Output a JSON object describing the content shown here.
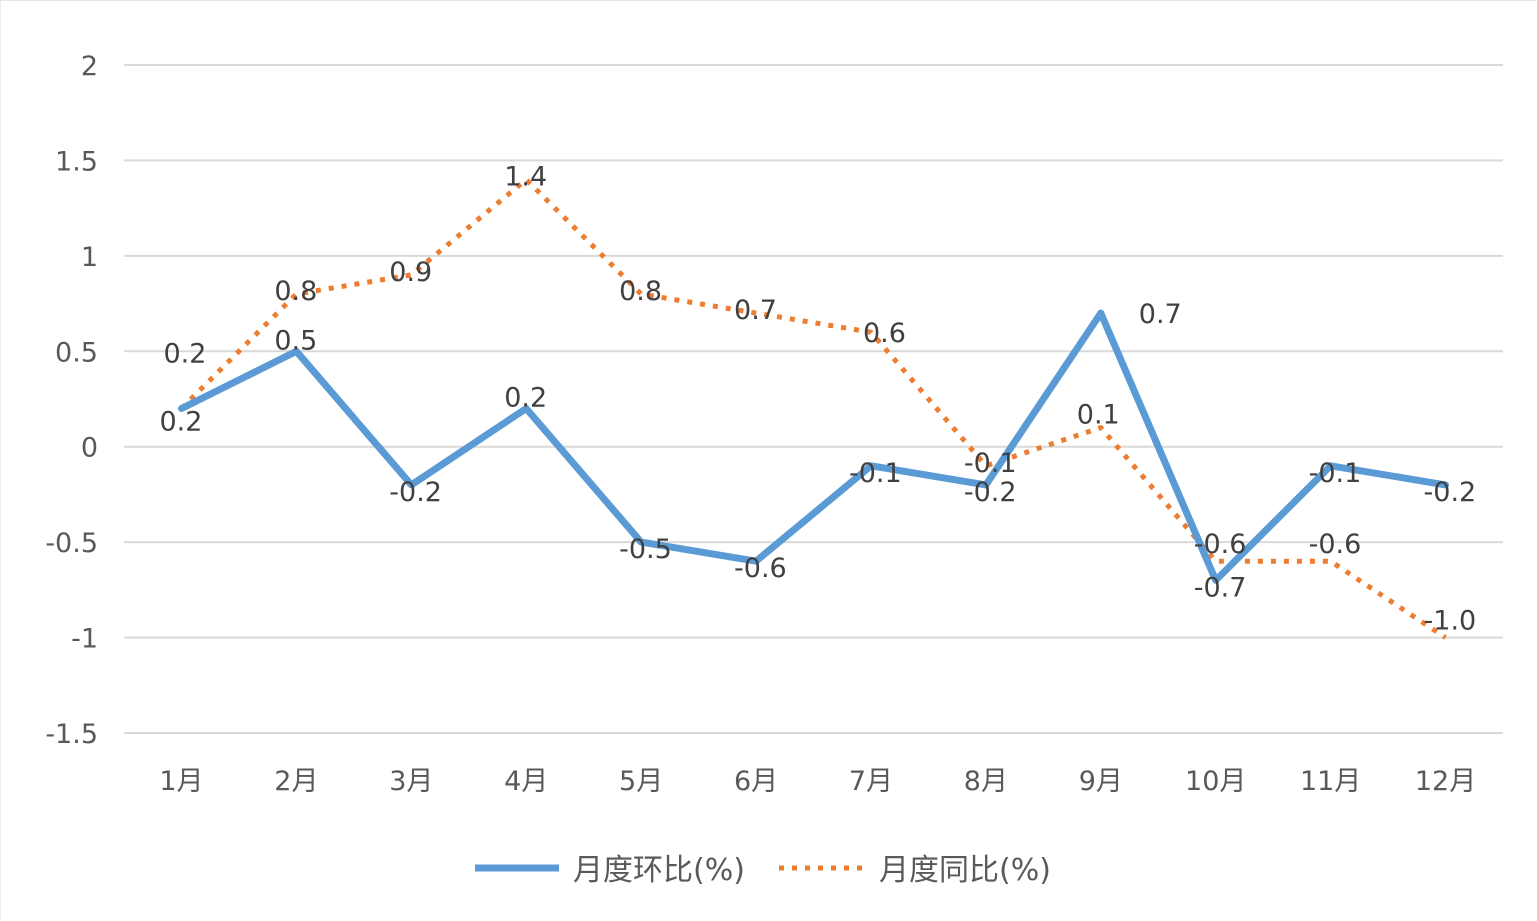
{
  "chart_data": {
    "type": "line",
    "categories": [
      "1月",
      "2月",
      "3月",
      "4月",
      "5月",
      "6月",
      "7月",
      "8月",
      "9月",
      "10月",
      "11月",
      "12月"
    ],
    "ylim": [
      -1.5,
      2
    ],
    "yticks": [
      "2",
      "1.5",
      "1",
      "0.5",
      "0",
      "-0.5",
      "-1",
      "-1.5"
    ],
    "ytick_values": [
      2,
      1.5,
      1,
      0.5,
      0,
      -0.5,
      -1,
      -1.5
    ],
    "grid": true,
    "legend_position": "bottom",
    "series": [
      {
        "name": "月度环比(%)",
        "color": "#5B9BD5",
        "style": "solid",
        "values": [
          0.2,
          0.5,
          -0.2,
          0.2,
          -0.5,
          -0.6,
          -0.1,
          -0.2,
          0.7,
          -0.7,
          -0.1,
          -0.2
        ],
        "labels": [
          "0.2",
          "0.5",
          "-0.2",
          "0.2",
          "-0.5",
          "-0.6",
          "-0.1",
          "-0.2",
          "0.7",
          "-0.7",
          "-0.1",
          "-0.2"
        ]
      },
      {
        "name": "月度同比(%)",
        "color": "#ED7D31",
        "style": "dotted",
        "values": [
          0.2,
          0.8,
          0.9,
          1.4,
          0.8,
          0.7,
          0.6,
          -0.1,
          0.1,
          -0.6,
          -0.6,
          -1.0
        ],
        "labels": [
          "0.2",
          "0.8",
          "0.9",
          "1.4",
          "0.8",
          "0.7",
          "0.6",
          "-0.1",
          "0.1",
          "-0.6",
          "-0.6",
          "-1.0"
        ]
      }
    ]
  }
}
